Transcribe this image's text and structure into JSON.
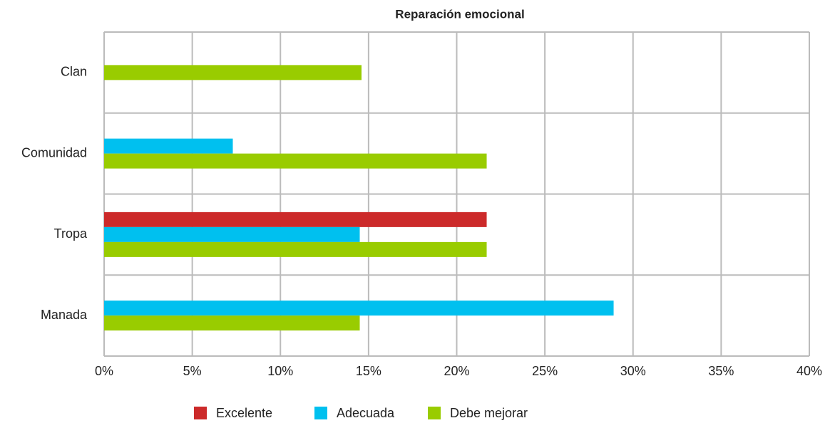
{
  "chart_data": {
    "type": "hbar",
    "title": "Reparación emocional",
    "categories": [
      "Clan",
      "Comunidad",
      "Tropa",
      "Manada"
    ],
    "series": [
      {
        "name": "Excelente",
        "color": "#cc2a2a",
        "values": [
          null,
          null,
          21.7,
          null
        ]
      },
      {
        "name": "Adecuada",
        "color": "#00c0ef",
        "values": [
          null,
          7.3,
          14.5,
          28.9
        ]
      },
      {
        "name": "Debe mejorar",
        "color": "#99cc00",
        "values": [
          14.6,
          21.7,
          21.7,
          14.5
        ]
      }
    ],
    "xlim": [
      0,
      40
    ],
    "xticks": [
      {
        "value": 0,
        "label": "0%"
      },
      {
        "value": 5,
        "label": "5%"
      },
      {
        "value": 10,
        "label": "10%"
      },
      {
        "value": 15,
        "label": "15%"
      },
      {
        "value": 20,
        "label": "20%"
      },
      {
        "value": 25,
        "label": "25%"
      },
      {
        "value": 30,
        "label": "30%"
      },
      {
        "value": 35,
        "label": "35%"
      },
      {
        "value": 40,
        "label": "40%"
      }
    ],
    "grid": true,
    "legend": "bottom"
  }
}
